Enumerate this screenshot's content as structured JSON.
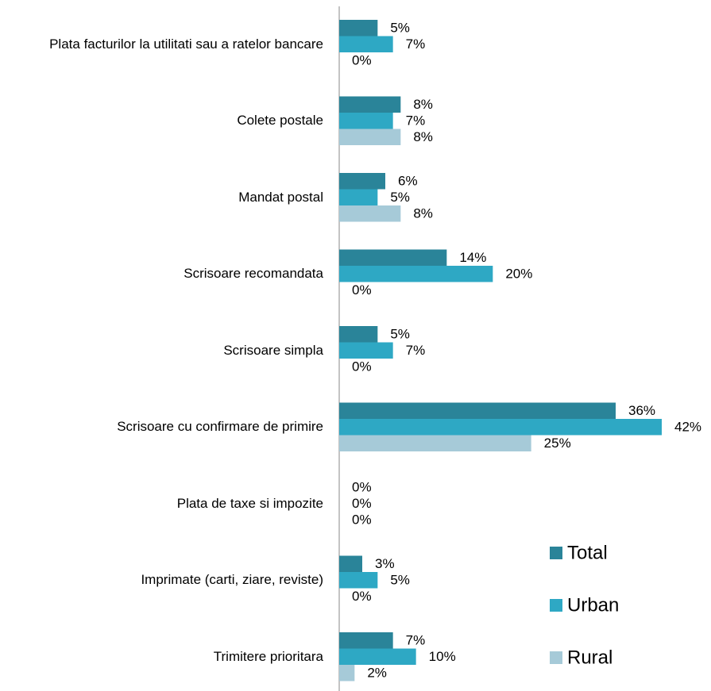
{
  "chart_data": {
    "type": "hbar",
    "categories": [
      "Plata facturilor la utilitati sau a ratelor bancare",
      "Colete postale",
      "Mandat postal",
      "Scrisoare recomandata",
      "Scrisoare simpla",
      "Scrisoare cu confirmare de primire",
      "Plata de taxe si impozite",
      "Imprimate (carti, ziare, reviste)",
      "Trimitere prioritara"
    ],
    "series": [
      {
        "name": "Total",
        "color": "#2a8499",
        "values": [
          5,
          8,
          6,
          14,
          5,
          36,
          0,
          3,
          7
        ],
        "value_labels": [
          "5%",
          "8%",
          "6%",
          "14%",
          "5%",
          "36%",
          "0%",
          "3%",
          "7%"
        ]
      },
      {
        "name": "Urban",
        "color": "#2ea8c4",
        "values": [
          7,
          7,
          5,
          20,
          7,
          42,
          0,
          5,
          10
        ],
        "value_labels": [
          "7%",
          "7%",
          "5%",
          "20%",
          "7%",
          "42%",
          "0%",
          "5%",
          "10%"
        ]
      },
      {
        "name": "Rural",
        "color": "#a6cad8",
        "values": [
          0,
          8,
          8,
          0,
          0,
          25,
          0,
          0,
          2
        ],
        "value_labels": [
          "0%",
          "8%",
          "8%",
          "0%",
          "0%",
          "25%",
          "0%",
          "0%",
          "2%"
        ]
      }
    ],
    "legend": "bottom-right"
  }
}
